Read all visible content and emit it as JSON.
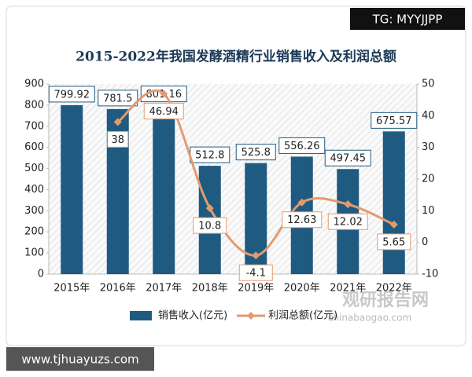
{
  "chart_data": {
    "type": "bar_line",
    "title": "2015-2022年我国发酵酒精行业销售收入及利润总额",
    "categories": [
      "2015年",
      "2016年",
      "2017年",
      "2018年",
      "2019年",
      "2020年",
      "2021年",
      "2022年"
    ],
    "series": [
      {
        "name": "销售收入(亿元)",
        "color": "#1f5b80",
        "type": "bar",
        "values": [
          799.92,
          781.5,
          801.16,
          512.8,
          525.8,
          556.26,
          497.45,
          675.57
        ]
      },
      {
        "name": "利润总额(亿元)",
        "color": "#e39a70",
        "type": "line",
        "axis": "y2",
        "values": [
          null,
          38,
          46.94,
          10.8,
          -4.1,
          12.63,
          12.02,
          5.65
        ]
      }
    ],
    "ylim": [
      0,
      900
    ],
    "yticks": [
      0,
      100,
      200,
      300,
      400,
      500,
      600,
      700,
      800,
      900
    ],
    "y2lim": [
      -10,
      50
    ],
    "y2ticks": [
      -10,
      0,
      10,
      20,
      30,
      40,
      50
    ],
    "grid": false,
    "legend": "bottom"
  },
  "overlay": {
    "tag": "TG: MYYJJPP",
    "site": "www.tjhuayuzs.com",
    "watermark": "观研报告网",
    "watermark_url": "chinabaogao.com"
  }
}
